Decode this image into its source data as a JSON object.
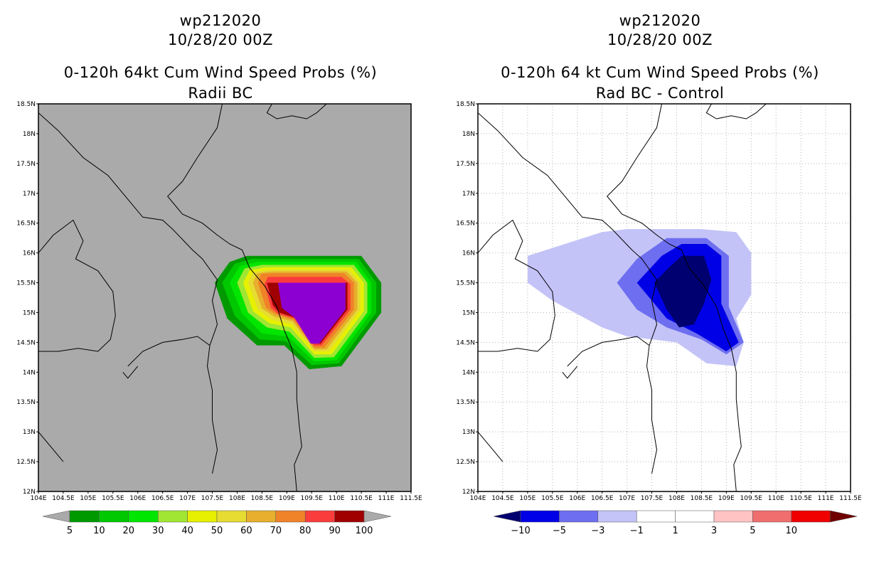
{
  "chart_data": [
    {
      "type": "heatmap",
      "storm": "wp212020",
      "date": "10/28/20 00Z",
      "title": "0-120h 64kt Cum Wind Speed Probs (%)",
      "subtitle": "Radii BC",
      "xlim": [
        104,
        111.5
      ],
      "ylim": [
        12,
        18.5
      ],
      "x_ticks": [
        "104E",
        "104.5E",
        "105E",
        "105.5E",
        "106E",
        "106.5E",
        "107E",
        "107.5E",
        "108E",
        "108.5E",
        "109E",
        "109.5E",
        "110E",
        "110.5E",
        "111E",
        "111.5E"
      ],
      "y_ticks": [
        "12N",
        "12.5N",
        "13N",
        "13.5N",
        "14N",
        "14.5N",
        "15N",
        "15.5N",
        "16N",
        "16.5N",
        "17N",
        "17.5N",
        "18N",
        "18.5N"
      ],
      "grid": false,
      "colorbar": {
        "labels": [
          "5",
          "10",
          "20",
          "30",
          "40",
          "50",
          "60",
          "70",
          "80",
          "90",
          "100"
        ],
        "colors": [
          "#009a00",
          "#00c800",
          "#00e600",
          "#a0e632",
          "#e6f000",
          "#e6dc32",
          "#e6af2d",
          "#f08228",
          "#fa3c3c",
          "#a00000",
          "#8c00d2"
        ],
        "under_color": "#aaaaaa",
        "over_color": "#aaaaaa"
      },
      "contours": [
        {
          "level": 5,
          "color": "#009a00",
          "polygon": [
            [
              107.55,
              15.5
            ],
            [
              107.85,
              15.85
            ],
            [
              108.2,
              15.95
            ],
            [
              110.5,
              15.95
            ],
            [
              110.9,
              15.5
            ],
            [
              110.9,
              15.0
            ],
            [
              110.1,
              14.1
            ],
            [
              109.45,
              14.05
            ],
            [
              108.95,
              14.45
            ],
            [
              108.4,
              14.45
            ],
            [
              107.8,
              14.9
            ]
          ]
        },
        {
          "level": 10,
          "color": "#00c800",
          "polygon": [
            [
              107.7,
              15.5
            ],
            [
              107.95,
              15.82
            ],
            [
              108.3,
              15.9
            ],
            [
              110.45,
              15.9
            ],
            [
              110.8,
              15.5
            ],
            [
              110.8,
              15.0
            ],
            [
              110.05,
              14.15
            ],
            [
              109.5,
              14.12
            ],
            [
              108.98,
              14.52
            ],
            [
              108.45,
              14.55
            ],
            [
              107.95,
              14.95
            ]
          ]
        },
        {
          "level": 20,
          "color": "#00e600",
          "polygon": [
            [
              107.85,
              15.5
            ],
            [
              108.05,
              15.78
            ],
            [
              108.4,
              15.85
            ],
            [
              110.4,
              15.85
            ],
            [
              110.7,
              15.5
            ],
            [
              110.7,
              15.0
            ],
            [
              110.0,
              14.2
            ],
            [
              109.55,
              14.18
            ],
            [
              109.02,
              14.6
            ],
            [
              108.5,
              14.65
            ],
            [
              108.1,
              14.98
            ]
          ]
        },
        {
          "level": 30,
          "color": "#a0e632",
          "polygon": [
            [
              108.0,
              15.5
            ],
            [
              108.15,
              15.74
            ],
            [
              108.5,
              15.8
            ],
            [
              110.35,
              15.8
            ],
            [
              110.62,
              15.5
            ],
            [
              110.62,
              15.0
            ],
            [
              109.95,
              14.25
            ],
            [
              109.55,
              14.24
            ],
            [
              109.05,
              14.68
            ],
            [
              108.6,
              14.75
            ],
            [
              108.22,
              15.0
            ]
          ]
        },
        {
          "level": 40,
          "color": "#e6f000",
          "polygon": [
            [
              108.12,
              15.5
            ],
            [
              108.25,
              15.71
            ],
            [
              108.58,
              15.76
            ],
            [
              110.3,
              15.76
            ],
            [
              110.55,
              15.5
            ],
            [
              110.55,
              15.02
            ],
            [
              109.9,
              14.3
            ],
            [
              109.55,
              14.3
            ],
            [
              109.08,
              14.75
            ],
            [
              108.65,
              14.82
            ],
            [
              108.32,
              15.02
            ]
          ]
        },
        {
          "level": 50,
          "color": "#e6dc32",
          "polygon": [
            [
              108.22,
              15.5
            ],
            [
              108.33,
              15.68
            ],
            [
              108.64,
              15.72
            ],
            [
              110.25,
              15.72
            ],
            [
              110.48,
              15.5
            ],
            [
              110.48,
              15.04
            ],
            [
              109.85,
              14.35
            ],
            [
              109.55,
              14.35
            ],
            [
              109.1,
              14.8
            ],
            [
              108.7,
              14.88
            ],
            [
              108.42,
              15.05
            ]
          ]
        },
        {
          "level": 60,
          "color": "#e6af2d",
          "polygon": [
            [
              108.32,
              15.5
            ],
            [
              108.4,
              15.66
            ],
            [
              108.7,
              15.69
            ],
            [
              110.2,
              15.69
            ],
            [
              110.42,
              15.5
            ],
            [
              110.42,
              15.05
            ],
            [
              109.8,
              14.38
            ],
            [
              109.55,
              14.38
            ],
            [
              109.12,
              14.85
            ],
            [
              108.75,
              14.93
            ],
            [
              108.5,
              15.07
            ]
          ]
        },
        {
          "level": 70,
          "color": "#f08228",
          "polygon": [
            [
              108.42,
              15.5
            ],
            [
              108.48,
              15.65
            ],
            [
              108.75,
              15.66
            ],
            [
              110.15,
              15.66
            ],
            [
              110.35,
              15.5
            ],
            [
              110.35,
              15.05
            ],
            [
              109.75,
              14.41
            ],
            [
              109.55,
              14.41
            ],
            [
              109.13,
              14.88
            ],
            [
              108.78,
              14.97
            ],
            [
              108.58,
              15.08
            ]
          ]
        },
        {
          "level": 80,
          "color": "#fa3c3c",
          "polygon": [
            [
              108.55,
              15.48
            ],
            [
              108.62,
              15.6
            ],
            [
              110.1,
              15.6
            ],
            [
              110.28,
              15.48
            ],
            [
              110.28,
              15.05
            ],
            [
              109.7,
              14.45
            ],
            [
              109.55,
              14.45
            ],
            [
              109.15,
              14.9
            ],
            [
              108.82,
              14.98
            ],
            [
              108.68,
              15.08
            ]
          ]
        },
        {
          "level": 90,
          "color": "#a00000",
          "polygon": [
            [
              108.6,
              15.5
            ],
            [
              110.22,
              15.5
            ],
            [
              110.22,
              15.05
            ],
            [
              109.68,
              14.48
            ],
            [
              109.5,
              14.48
            ],
            [
              109.15,
              14.92
            ],
            [
              108.85,
              15.0
            ],
            [
              108.72,
              15.12
            ]
          ]
        },
        {
          "level": 100,
          "color": "#8c00d2",
          "polygon": [
            [
              108.82,
              15.5
            ],
            [
              110.18,
              15.5
            ],
            [
              110.18,
              15.05
            ],
            [
              109.65,
              14.48
            ],
            [
              109.48,
              14.48
            ],
            [
              109.15,
              14.92
            ],
            [
              108.9,
              15.08
            ]
          ]
        }
      ]
    },
    {
      "type": "heatmap",
      "storm": "wp212020",
      "date": "10/28/20 00Z",
      "title": "0-120h 64 kt Cum Wind Speed Probs (%)",
      "subtitle": "Rad BC - Control",
      "xlim": [
        104,
        111.5
      ],
      "ylim": [
        12,
        18.5
      ],
      "x_ticks": [
        "104E",
        "104.5E",
        "105E",
        "105.5E",
        "106E",
        "106.5E",
        "107E",
        "107.5E",
        "108E",
        "108.5E",
        "109E",
        "109.5E",
        "110E",
        "110.5E",
        "111E",
        "111.5E"
      ],
      "y_ticks": [
        "12N",
        "12.5N",
        "13N",
        "13.5N",
        "14N",
        "14.5N",
        "15N",
        "15.5N",
        "16N",
        "16.5N",
        "17N",
        "17.5N",
        "18N",
        "18.5N"
      ],
      "grid": true,
      "colorbar": {
        "labels": [
          "−10",
          "−5",
          "−3",
          "−1",
          "1",
          "3",
          "5",
          "10"
        ],
        "colors": [
          "#0000e6",
          "#6e6ef0",
          "#c3c3f8",
          "#ffffff",
          "#ffffff",
          "#ffc3c3",
          "#f06e6e",
          "#f00000",
          "#f00000"
        ],
        "under_color": "#000070",
        "over_color": "#700000"
      },
      "contours": [
        {
          "level": -1,
          "color": "#c3c3f8",
          "polygon": [
            [
              105.0,
              15.95
            ],
            [
              106.5,
              16.35
            ],
            [
              107.0,
              16.4
            ],
            [
              108.5,
              16.4
            ],
            [
              109.2,
              16.35
            ],
            [
              109.5,
              16.0
            ],
            [
              109.5,
              15.3
            ],
            [
              109.2,
              14.9
            ],
            [
              109.35,
              14.5
            ],
            [
              109.2,
              14.1
            ],
            [
              108.6,
              14.15
            ],
            [
              108.0,
              14.5
            ],
            [
              107.0,
              14.6
            ],
            [
              106.5,
              14.75
            ],
            [
              105.5,
              15.2
            ],
            [
              105.0,
              15.5
            ]
          ]
        },
        {
          "level": -3,
          "color": "#6e6ef0",
          "polygon": [
            [
              106.8,
              15.5
            ],
            [
              107.2,
              15.9
            ],
            [
              107.8,
              16.25
            ],
            [
              108.6,
              16.25
            ],
            [
              109.05,
              15.95
            ],
            [
              109.05,
              15.1
            ],
            [
              109.35,
              14.5
            ],
            [
              109.0,
              14.3
            ],
            [
              108.5,
              14.55
            ],
            [
              107.8,
              14.75
            ],
            [
              107.2,
              15.05
            ]
          ]
        },
        {
          "level": -5,
          "color": "#0000e6",
          "polygon": [
            [
              107.2,
              15.5
            ],
            [
              107.7,
              15.95
            ],
            [
              108.1,
              16.15
            ],
            [
              108.6,
              16.15
            ],
            [
              108.9,
              15.95
            ],
            [
              108.9,
              15.15
            ],
            [
              109.25,
              14.5
            ],
            [
              109.0,
              14.35
            ],
            [
              108.4,
              14.65
            ],
            [
              107.8,
              14.9
            ]
          ]
        },
        {
          "level": -10,
          "color": "#000070",
          "polygon": [
            [
              107.55,
              15.5
            ],
            [
              107.8,
              15.72
            ],
            [
              108.1,
              15.95
            ],
            [
              108.55,
              15.95
            ],
            [
              108.7,
              15.55
            ],
            [
              108.55,
              15.15
            ],
            [
              108.35,
              14.8
            ],
            [
              108.05,
              14.75
            ],
            [
              107.8,
              15.05
            ]
          ]
        }
      ]
    }
  ]
}
